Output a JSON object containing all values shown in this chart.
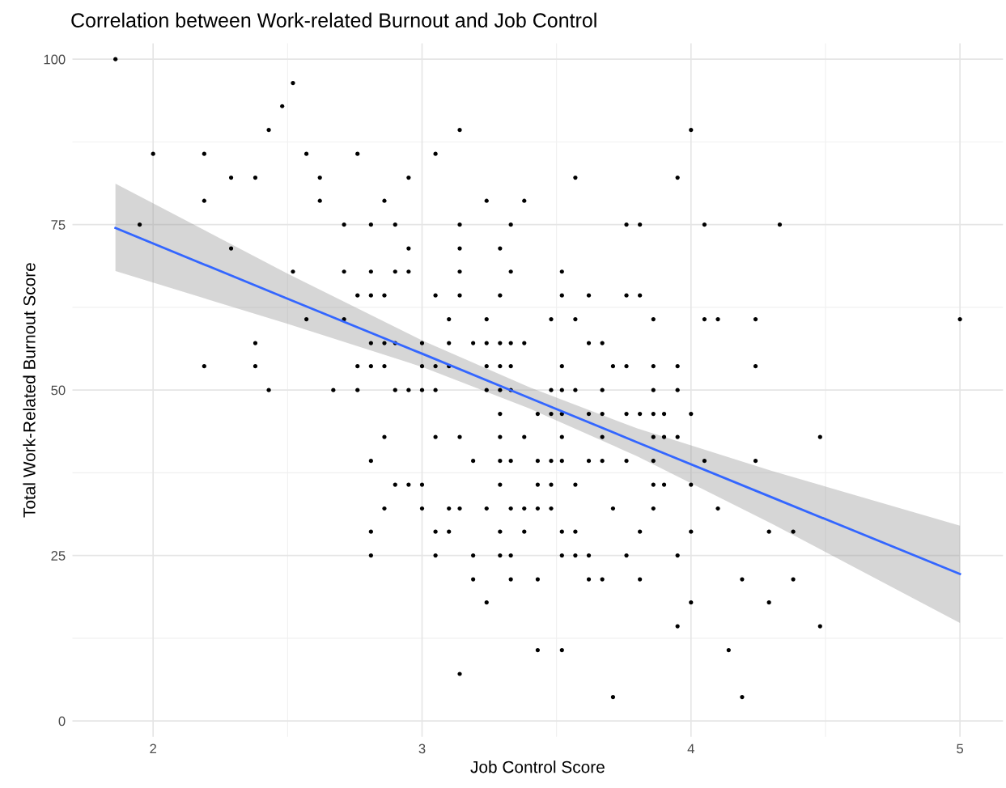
{
  "chart_data": {
    "type": "scatter",
    "title": "Correlation between Work-related Burnout and Job Control",
    "xlabel": "Job Control Score",
    "ylabel": "Total Work-Related Burnout Score",
    "xlim": [
      1.7,
      5.16
    ],
    "ylim": [
      -2.4,
      102.4
    ],
    "xticks": [
      2,
      3,
      4,
      5
    ],
    "yticks": [
      0,
      25,
      50,
      75,
      100
    ],
    "grid": true,
    "marker": "circle",
    "series": [
      {
        "color": "#000000",
        "x": [
          1.86,
          1.95,
          2.0,
          2.19,
          2.19,
          2.19,
          2.29,
          2.29,
          2.38,
          2.38,
          2.38,
          2.43,
          2.43,
          2.48,
          2.52,
          2.52,
          2.57,
          2.57,
          2.62,
          2.62,
          2.67,
          2.71,
          2.71,
          2.71,
          2.76,
          2.76,
          2.76,
          2.76,
          2.81,
          2.81,
          2.81,
          2.81,
          2.81,
          2.81,
          2.81,
          2.81,
          2.86,
          2.86,
          2.86,
          2.86,
          2.86,
          2.86,
          2.9,
          2.9,
          2.9,
          2.9,
          2.9,
          2.95,
          2.95,
          2.95,
          2.95,
          2.95,
          3.0,
          3.0,
          3.0,
          3.0,
          3.0,
          3.05,
          3.05,
          3.05,
          3.05,
          3.05,
          3.05,
          3.05,
          3.1,
          3.1,
          3.1,
          3.1,
          3.1,
          3.14,
          3.14,
          3.14,
          3.14,
          3.14,
          3.14,
          3.14,
          3.14,
          3.19,
          3.19,
          3.19,
          3.19,
          3.24,
          3.24,
          3.24,
          3.24,
          3.24,
          3.24,
          3.24,
          3.29,
          3.29,
          3.29,
          3.29,
          3.29,
          3.29,
          3.29,
          3.29,
          3.29,
          3.29,
          3.29,
          3.33,
          3.33,
          3.33,
          3.33,
          3.33,
          3.33,
          3.33,
          3.33,
          3.33,
          3.38,
          3.38,
          3.38,
          3.38,
          3.38,
          3.43,
          3.43,
          3.43,
          3.43,
          3.43,
          3.43,
          3.48,
          3.48,
          3.48,
          3.48,
          3.48,
          3.48,
          3.52,
          3.52,
          3.52,
          3.52,
          3.52,
          3.52,
          3.52,
          3.52,
          3.52,
          3.52,
          3.57,
          3.57,
          3.57,
          3.57,
          3.57,
          3.57,
          3.62,
          3.62,
          3.62,
          3.62,
          3.62,
          3.62,
          3.67,
          3.67,
          3.67,
          3.67,
          3.67,
          3.67,
          3.71,
          3.71,
          3.71,
          3.76,
          3.76,
          3.76,
          3.76,
          3.76,
          3.76,
          3.81,
          3.81,
          3.81,
          3.81,
          3.81,
          3.86,
          3.86,
          3.86,
          3.86,
          3.86,
          3.86,
          3.86,
          3.86,
          3.9,
          3.9,
          3.9,
          3.95,
          3.95,
          3.95,
          3.95,
          3.95,
          3.95,
          4.0,
          4.0,
          4.0,
          4.0,
          4.0,
          4.05,
          4.05,
          4.05,
          4.1,
          4.1,
          4.14,
          4.19,
          4.19,
          4.24,
          4.24,
          4.24,
          4.29,
          4.29,
          4.33,
          4.38,
          4.38,
          4.48,
          4.48,
          5.0
        ],
        "values": [
          100,
          75,
          85.7,
          85.7,
          78.6,
          53.6,
          82.1,
          71.4,
          82.1,
          57.1,
          53.6,
          89.3,
          50,
          92.9,
          96.4,
          67.9,
          85.7,
          60.7,
          82.1,
          78.6,
          50,
          75,
          67.9,
          60.7,
          85.7,
          64.3,
          53.6,
          50,
          75,
          67.9,
          64.3,
          57.1,
          53.6,
          39.3,
          28.6,
          25,
          78.6,
          64.3,
          57.1,
          53.6,
          42.9,
          32.1,
          75,
          67.9,
          57.1,
          50,
          35.7,
          82.1,
          71.4,
          67.9,
          50,
          35.7,
          57.1,
          53.6,
          50,
          35.7,
          32.1,
          85.7,
          64.3,
          53.6,
          50,
          42.9,
          28.6,
          25,
          60.7,
          57.1,
          53.6,
          32.1,
          28.6,
          89.3,
          75,
          71.4,
          67.9,
          64.3,
          42.9,
          32.1,
          7.1,
          57.1,
          39.3,
          25,
          21.4,
          78.6,
          60.7,
          57.1,
          53.6,
          50,
          32.1,
          17.9,
          71.4,
          64.3,
          57.1,
          53.6,
          50,
          46.4,
          42.9,
          39.3,
          35.7,
          28.6,
          25,
          75,
          67.9,
          57.1,
          53.6,
          50,
          39.3,
          32.1,
          25,
          21.4,
          78.6,
          57.1,
          42.9,
          32.1,
          28.6,
          46.4,
          39.3,
          35.7,
          32.1,
          21.4,
          10.7,
          60.7,
          50,
          46.4,
          39.3,
          35.7,
          32.1,
          67.9,
          64.3,
          53.6,
          50,
          46.4,
          42.9,
          39.3,
          28.6,
          25,
          10.7,
          82.1,
          60.7,
          50,
          35.7,
          28.6,
          25,
          64.3,
          57.1,
          46.4,
          39.3,
          25,
          21.4,
          57.1,
          50,
          46.4,
          42.9,
          39.3,
          21.4,
          53.6,
          32.1,
          3.6,
          75,
          64.3,
          53.6,
          46.4,
          39.3,
          25,
          75,
          64.3,
          46.4,
          28.6,
          21.4,
          60.7,
          53.6,
          50,
          46.4,
          42.9,
          39.3,
          35.7,
          32.1,
          46.4,
          42.9,
          35.7,
          82.1,
          53.6,
          50,
          42.9,
          25,
          14.3,
          89.3,
          46.4,
          35.7,
          28.6,
          17.9,
          75,
          60.7,
          39.3,
          60.7,
          32.1,
          10.7,
          21.4,
          3.6,
          60.7,
          53.6,
          39.3,
          28.6,
          17.9,
          75,
          28.6,
          21.4,
          42.9,
          14.3,
          60.7
        ]
      },
      {
        "type": "line",
        "marker": "none",
        "color": "#3366ff",
        "x": [
          1.86,
          2.5,
          3.0,
          3.4,
          3.8,
          4.3,
          5.0
        ],
        "values": [
          74.5,
          63.8,
          55.5,
          48.8,
          42.1,
          33.8,
          22.2
        ],
        "lower": [
          68,
          60,
          53.5,
          47.2,
          40,
          29.8,
          14.8
        ],
        "upper": [
          81.2,
          67.6,
          57.5,
          50.4,
          44.2,
          37.8,
          29.5
        ]
      }
    ]
  }
}
